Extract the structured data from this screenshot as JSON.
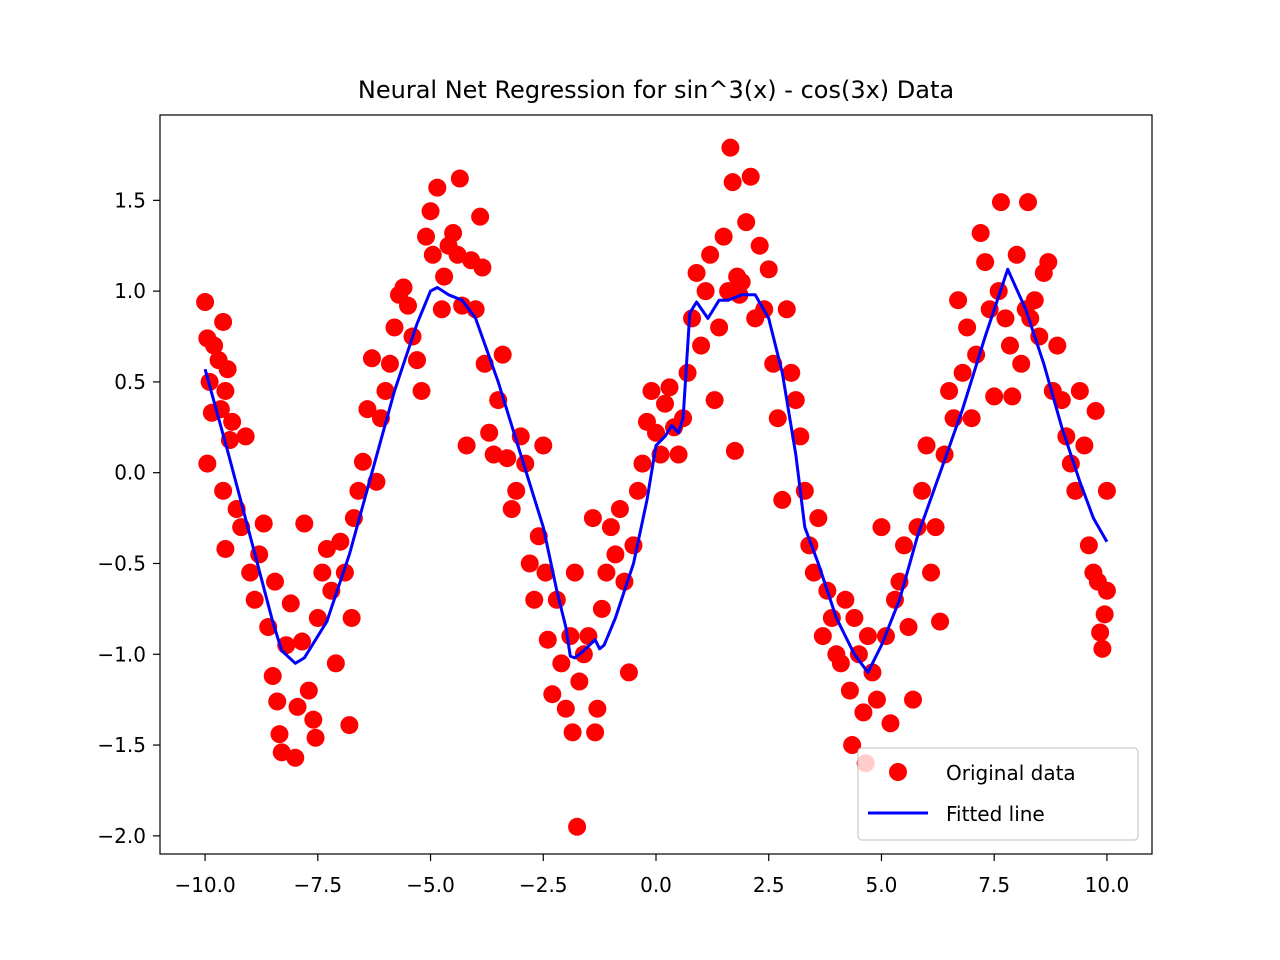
{
  "chart_data": {
    "type": "scatter",
    "title": "Neural Net Regression for sin^3(x) - cos(3x) Data",
    "xlabel": "",
    "ylabel": "",
    "xlim": [
      -11,
      11
    ],
    "ylim": [
      -2.1,
      1.97
    ],
    "grid": false,
    "legend_placement": "lower-right",
    "x_ticks": [
      {
        "value": -10.0,
        "label": "−10.0"
      },
      {
        "value": -7.5,
        "label": "−7.5"
      },
      {
        "value": -5.0,
        "label": "−5.0"
      },
      {
        "value": -2.5,
        "label": "−2.5"
      },
      {
        "value": 0.0,
        "label": "0.0"
      },
      {
        "value": 2.5,
        "label": "2.5"
      },
      {
        "value": 5.0,
        "label": "5.0"
      },
      {
        "value": 7.5,
        "label": "7.5"
      },
      {
        "value": 10.0,
        "label": "10.0"
      }
    ],
    "y_ticks": [
      {
        "value": -2.0,
        "label": "−2.0"
      },
      {
        "value": -1.5,
        "label": "−1.5"
      },
      {
        "value": -1.0,
        "label": "−1.0"
      },
      {
        "value": -0.5,
        "label": "−0.5"
      },
      {
        "value": 0.0,
        "label": "0.0"
      },
      {
        "value": 0.5,
        "label": "0.5"
      },
      {
        "value": 1.0,
        "label": "1.0"
      },
      {
        "value": 1.5,
        "label": "1.5"
      }
    ],
    "series": [
      {
        "name": "Original data",
        "kind": "scatter",
        "color": "#ff0000",
        "points": [
          [
            -10.0,
            0.94
          ],
          [
            -9.95,
            0.74
          ],
          [
            -9.9,
            0.5
          ],
          [
            -9.95,
            0.05
          ],
          [
            -9.85,
            0.33
          ],
          [
            -9.8,
            0.7
          ],
          [
            -9.7,
            0.62
          ],
          [
            -9.65,
            0.35
          ],
          [
            -9.6,
            0.83
          ],
          [
            -9.55,
            0.45
          ],
          [
            -9.5,
            0.57
          ],
          [
            -9.6,
            -0.1
          ],
          [
            -9.55,
            -0.42
          ],
          [
            -9.45,
            0.18
          ],
          [
            -9.4,
            0.28
          ],
          [
            -9.3,
            -0.2
          ],
          [
            -9.2,
            -0.3
          ],
          [
            -9.1,
            0.2
          ],
          [
            -9.0,
            -0.55
          ],
          [
            -8.9,
            -0.7
          ],
          [
            -8.8,
            -0.45
          ],
          [
            -8.7,
            -0.28
          ],
          [
            -8.6,
            -0.85
          ],
          [
            -8.5,
            -1.12
          ],
          [
            -8.45,
            -0.6
          ],
          [
            -8.4,
            -1.26
          ],
          [
            -8.35,
            -1.44
          ],
          [
            -8.3,
            -1.54
          ],
          [
            -8.2,
            -0.95
          ],
          [
            -8.1,
            -0.72
          ],
          [
            -8.0,
            -1.57
          ],
          [
            -7.95,
            -1.29
          ],
          [
            -7.85,
            -0.93
          ],
          [
            -7.8,
            -0.28
          ],
          [
            -7.7,
            -1.2
          ],
          [
            -7.6,
            -1.36
          ],
          [
            -7.55,
            -1.46
          ],
          [
            -7.5,
            -0.8
          ],
          [
            -7.4,
            -0.55
          ],
          [
            -7.3,
            -0.42
          ],
          [
            -7.2,
            -0.65
          ],
          [
            -7.1,
            -1.05
          ],
          [
            -7.0,
            -0.38
          ],
          [
            -6.9,
            -0.55
          ],
          [
            -6.8,
            -1.39
          ],
          [
            -6.75,
            -0.8
          ],
          [
            -6.7,
            -0.25
          ],
          [
            -6.6,
            -0.1
          ],
          [
            -6.5,
            0.06
          ],
          [
            -6.4,
            0.35
          ],
          [
            -6.3,
            0.63
          ],
          [
            -6.2,
            -0.05
          ],
          [
            -6.1,
            0.3
          ],
          [
            -6.0,
            0.45
          ],
          [
            -5.9,
            0.6
          ],
          [
            -5.8,
            0.8
          ],
          [
            -5.7,
            0.98
          ],
          [
            -5.6,
            1.02
          ],
          [
            -5.5,
            0.92
          ],
          [
            -5.4,
            0.75
          ],
          [
            -5.3,
            0.62
          ],
          [
            -5.2,
            0.45
          ],
          [
            -5.1,
            1.3
          ],
          [
            -5.0,
            1.44
          ],
          [
            -4.95,
            1.2
          ],
          [
            -4.85,
            1.57
          ],
          [
            -4.75,
            0.9
          ],
          [
            -4.7,
            1.08
          ],
          [
            -4.6,
            1.25
          ],
          [
            -4.5,
            1.32
          ],
          [
            -4.4,
            1.2
          ],
          [
            -4.35,
            1.62
          ],
          [
            -4.3,
            0.92
          ],
          [
            -4.2,
            0.15
          ],
          [
            -4.1,
            1.17
          ],
          [
            -4.0,
            0.9
          ],
          [
            -3.9,
            1.41
          ],
          [
            -3.85,
            1.13
          ],
          [
            -3.8,
            0.6
          ],
          [
            -3.7,
            0.22
          ],
          [
            -3.6,
            0.1
          ],
          [
            -3.5,
            0.4
          ],
          [
            -3.4,
            0.65
          ],
          [
            -3.3,
            0.08
          ],
          [
            -3.2,
            -0.2
          ],
          [
            -3.1,
            -0.1
          ],
          [
            -3.0,
            0.2
          ],
          [
            -2.9,
            0.05
          ],
          [
            -2.8,
            -0.5
          ],
          [
            -2.7,
            -0.7
          ],
          [
            -2.6,
            -0.35
          ],
          [
            -2.5,
            0.15
          ],
          [
            -2.45,
            -0.55
          ],
          [
            -2.4,
            -0.92
          ],
          [
            -2.3,
            -1.22
          ],
          [
            -2.2,
            -0.7
          ],
          [
            -2.1,
            -1.05
          ],
          [
            -2.0,
            -1.3
          ],
          [
            -1.9,
            -0.9
          ],
          [
            -1.85,
            -1.43
          ],
          [
            -1.8,
            -0.55
          ],
          [
            -1.75,
            -1.95
          ],
          [
            -1.7,
            -1.15
          ],
          [
            -1.6,
            -1.0
          ],
          [
            -1.5,
            -0.9
          ],
          [
            -1.4,
            -0.25
          ],
          [
            -1.35,
            -1.43
          ],
          [
            -1.3,
            -1.3
          ],
          [
            -1.2,
            -0.75
          ],
          [
            -1.1,
            -0.55
          ],
          [
            -1.0,
            -0.3
          ],
          [
            -0.9,
            -0.45
          ],
          [
            -0.8,
            -0.2
          ],
          [
            -0.7,
            -0.6
          ],
          [
            -0.6,
            -1.1
          ],
          [
            -0.5,
            -0.4
          ],
          [
            -0.4,
            -0.1
          ],
          [
            -0.3,
            0.05
          ],
          [
            -0.2,
            0.28
          ],
          [
            -0.1,
            0.45
          ],
          [
            0.0,
            0.22
          ],
          [
            0.1,
            0.1
          ],
          [
            0.2,
            0.38
          ],
          [
            0.3,
            0.47
          ],
          [
            0.4,
            0.25
          ],
          [
            0.5,
            0.1
          ],
          [
            0.6,
            0.3
          ],
          [
            0.7,
            0.55
          ],
          [
            0.8,
            0.85
          ],
          [
            0.9,
            1.1
          ],
          [
            1.0,
            0.7
          ],
          [
            1.1,
            1.0
          ],
          [
            1.2,
            1.2
          ],
          [
            1.3,
            0.4
          ],
          [
            1.4,
            0.8
          ],
          [
            1.5,
            1.3
          ],
          [
            1.6,
            1.0
          ],
          [
            1.65,
            1.79
          ],
          [
            1.7,
            1.6
          ],
          [
            1.75,
            0.12
          ],
          [
            1.8,
            1.08
          ],
          [
            1.85,
            0.98
          ],
          [
            1.9,
            1.05
          ],
          [
            2.0,
            1.38
          ],
          [
            2.1,
            1.63
          ],
          [
            2.2,
            0.85
          ],
          [
            2.3,
            1.25
          ],
          [
            2.4,
            0.9
          ],
          [
            2.5,
            1.12
          ],
          [
            2.6,
            0.6
          ],
          [
            2.7,
            0.3
          ],
          [
            2.8,
            -0.15
          ],
          [
            2.9,
            0.9
          ],
          [
            3.0,
            0.55
          ],
          [
            3.1,
            0.4
          ],
          [
            3.2,
            0.2
          ],
          [
            3.3,
            -0.1
          ],
          [
            3.4,
            -0.4
          ],
          [
            3.5,
            -0.55
          ],
          [
            3.6,
            -0.25
          ],
          [
            3.7,
            -0.9
          ],
          [
            3.8,
            -0.65
          ],
          [
            3.9,
            -0.8
          ],
          [
            4.0,
            -1.0
          ],
          [
            4.1,
            -1.05
          ],
          [
            4.2,
            -0.7
          ],
          [
            4.3,
            -1.2
          ],
          [
            4.35,
            -1.5
          ],
          [
            4.4,
            -0.8
          ],
          [
            4.5,
            -1.0
          ],
          [
            4.6,
            -1.32
          ],
          [
            4.65,
            -1.6
          ],
          [
            4.7,
            -0.9
          ],
          [
            4.8,
            -1.1
          ],
          [
            4.9,
            -1.25
          ],
          [
            5.0,
            -0.3
          ],
          [
            5.1,
            -0.9
          ],
          [
            5.2,
            -1.38
          ],
          [
            5.3,
            -0.7
          ],
          [
            5.4,
            -0.6
          ],
          [
            5.5,
            -0.4
          ],
          [
            5.6,
            -0.85
          ],
          [
            5.7,
            -1.25
          ],
          [
            5.8,
            -0.3
          ],
          [
            5.9,
            -0.1
          ],
          [
            6.0,
            0.15
          ],
          [
            6.1,
            -0.55
          ],
          [
            6.2,
            -0.3
          ],
          [
            6.3,
            -0.82
          ],
          [
            6.4,
            0.1
          ],
          [
            6.5,
            0.45
          ],
          [
            6.6,
            0.3
          ],
          [
            6.7,
            0.95
          ],
          [
            6.8,
            0.55
          ],
          [
            6.9,
            0.8
          ],
          [
            7.0,
            0.3
          ],
          [
            7.1,
            0.65
          ],
          [
            7.2,
            1.32
          ],
          [
            7.3,
            1.16
          ],
          [
            7.4,
            0.9
          ],
          [
            7.5,
            0.42
          ],
          [
            7.6,
            1.0
          ],
          [
            7.65,
            1.49
          ],
          [
            7.75,
            0.85
          ],
          [
            7.85,
            0.7
          ],
          [
            7.9,
            0.42
          ],
          [
            8.0,
            1.2
          ],
          [
            8.1,
            0.6
          ],
          [
            8.2,
            0.9
          ],
          [
            8.25,
            1.49
          ],
          [
            8.3,
            0.85
          ],
          [
            8.4,
            0.95
          ],
          [
            8.5,
            0.75
          ],
          [
            8.6,
            1.1
          ],
          [
            8.7,
            1.16
          ],
          [
            8.8,
            0.45
          ],
          [
            8.9,
            0.7
          ],
          [
            9.0,
            0.4
          ],
          [
            9.1,
            0.2
          ],
          [
            9.2,
            0.05
          ],
          [
            9.3,
            -0.1
          ],
          [
            9.4,
            0.45
          ],
          [
            9.5,
            0.15
          ],
          [
            9.6,
            -0.4
          ],
          [
            9.7,
            -0.55
          ],
          [
            9.75,
            0.34
          ],
          [
            9.8,
            -0.6
          ],
          [
            9.85,
            -0.88
          ],
          [
            9.9,
            -0.97
          ],
          [
            9.95,
            -0.78
          ],
          [
            10.0,
            -0.1
          ],
          [
            10.0,
            -0.65
          ]
        ]
      },
      {
        "name": "Fitted line",
        "kind": "line",
        "color": "#0000ff",
        "points": [
          [
            -10.0,
            0.57
          ],
          [
            -9.5,
            0.12
          ],
          [
            -9.0,
            -0.35
          ],
          [
            -8.5,
            -0.82
          ],
          [
            -8.3,
            -0.98
          ],
          [
            -8.0,
            -1.05
          ],
          [
            -7.8,
            -1.02
          ],
          [
            -7.3,
            -0.82
          ],
          [
            -6.8,
            -0.45
          ],
          [
            -6.3,
            0.0
          ],
          [
            -5.8,
            0.45
          ],
          [
            -5.3,
            0.82
          ],
          [
            -5.0,
            1.0
          ],
          [
            -4.85,
            1.02
          ],
          [
            -4.6,
            0.98
          ],
          [
            -4.3,
            0.95
          ],
          [
            -4.0,
            0.85
          ],
          [
            -3.5,
            0.5
          ],
          [
            -3.0,
            0.1
          ],
          [
            -2.5,
            -0.3
          ],
          [
            -2.2,
            -0.65
          ],
          [
            -2.0,
            -0.85
          ],
          [
            -1.9,
            -1.01
          ],
          [
            -1.8,
            -1.02
          ],
          [
            -1.6,
            -0.98
          ],
          [
            -1.35,
            -0.92
          ],
          [
            -1.25,
            -0.97
          ],
          [
            -1.15,
            -0.95
          ],
          [
            -0.9,
            -0.8
          ],
          [
            -0.5,
            -0.5
          ],
          [
            -0.2,
            -0.15
          ],
          [
            0.0,
            0.15
          ],
          [
            0.2,
            0.2
          ],
          [
            0.35,
            0.26
          ],
          [
            0.5,
            0.22
          ],
          [
            0.6,
            0.3
          ],
          [
            0.75,
            0.88
          ],
          [
            0.9,
            0.94
          ],
          [
            1.15,
            0.85
          ],
          [
            1.4,
            0.95
          ],
          [
            1.6,
            0.95
          ],
          [
            1.9,
            0.98
          ],
          [
            2.2,
            0.98
          ],
          [
            2.5,
            0.85
          ],
          [
            2.8,
            0.55
          ],
          [
            3.1,
            0.1
          ],
          [
            3.3,
            -0.3
          ],
          [
            3.6,
            -0.5
          ],
          [
            4.0,
            -0.8
          ],
          [
            4.4,
            -1.0
          ],
          [
            4.7,
            -1.1
          ],
          [
            5.0,
            -0.95
          ],
          [
            5.4,
            -0.7
          ],
          [
            5.8,
            -0.35
          ],
          [
            6.3,
            0.0
          ],
          [
            6.8,
            0.35
          ],
          [
            7.3,
            0.75
          ],
          [
            7.8,
            1.12
          ],
          [
            8.2,
            0.9
          ],
          [
            8.6,
            0.6
          ],
          [
            9.0,
            0.25
          ],
          [
            9.4,
            -0.05
          ],
          [
            9.7,
            -0.25
          ],
          [
            10.0,
            -0.38
          ]
        ]
      }
    ]
  }
}
